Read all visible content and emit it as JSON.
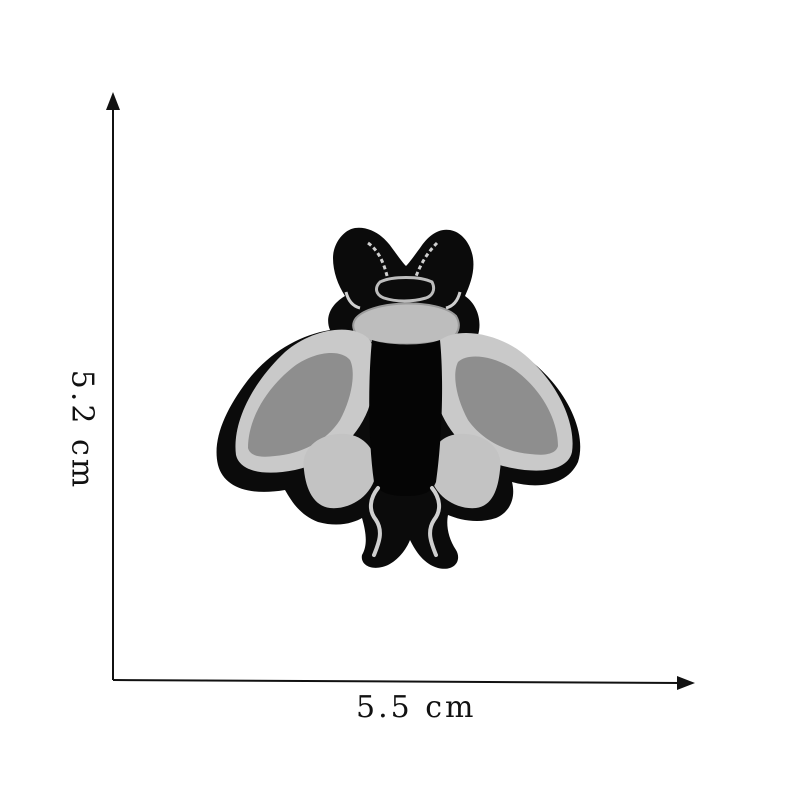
{
  "dimensions": {
    "width_label": "5.5 cm",
    "height_label": "5.2 cm"
  },
  "patch": {
    "icon": "fly-icon",
    "colors": {
      "border": "#0b0b0b",
      "thread_light": "#cfcfcf",
      "thread_mid": "#a9a9a9",
      "thread_dark": "#8a8a8a"
    }
  },
  "axis_color": "#111111"
}
